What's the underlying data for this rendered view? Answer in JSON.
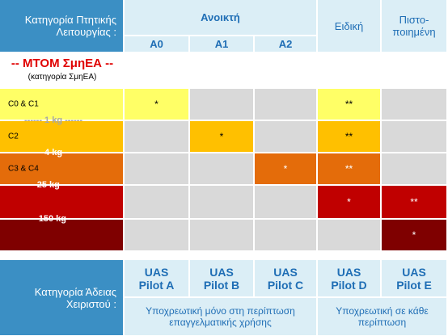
{
  "header": {
    "operation_label": "Κατηγορία Πτητικής Λειτουργίας :",
    "open": "Ανοικτή",
    "open_subcategories": [
      "A0",
      "A1",
      "A2"
    ],
    "specific": "Ειδική",
    "certified": "Πιστο-\nποιημένη"
  },
  "mtom": {
    "title": "-- MTOM ΣμηΕΑ --",
    "subtitle": "(κατηγορία ΣμηΕΑ)"
  },
  "rows": [
    {
      "label": "C0 & C1",
      "cells": [
        "*",
        null,
        null,
        "**",
        null
      ]
    },
    {
      "label": "C2",
      "cells": [
        null,
        "*",
        null,
        "**",
        null
      ]
    },
    {
      "label": "C3 & C4",
      "cells": [
        null,
        null,
        "*",
        "**",
        null
      ]
    },
    {
      "label": null,
      "cells": [
        null,
        null,
        null,
        "*",
        "**"
      ]
    },
    {
      "label": null,
      "cells": [
        null,
        null,
        null,
        null,
        "*"
      ]
    }
  ],
  "weight_limits": [
    "------ 1 kg ------",
    "------ 4 kg ------",
    "---- 25 kg ----",
    "---- 150 kg -----"
  ],
  "license": {
    "label": "Κατηγορία Άδειας\nΧειριστού :",
    "pilots": [
      "UAS\nPilot A",
      "UAS\nPilot B",
      "UAS\nPilot C",
      "UAS\nPilot D",
      "UAS\nPilot E"
    ],
    "notes": [
      "Υποχρεωτική μόνο στη περίπτωση επαγγελματικής χρήσης",
      "Υποχρεωτική σε κάθε περίπτωση"
    ]
  }
}
